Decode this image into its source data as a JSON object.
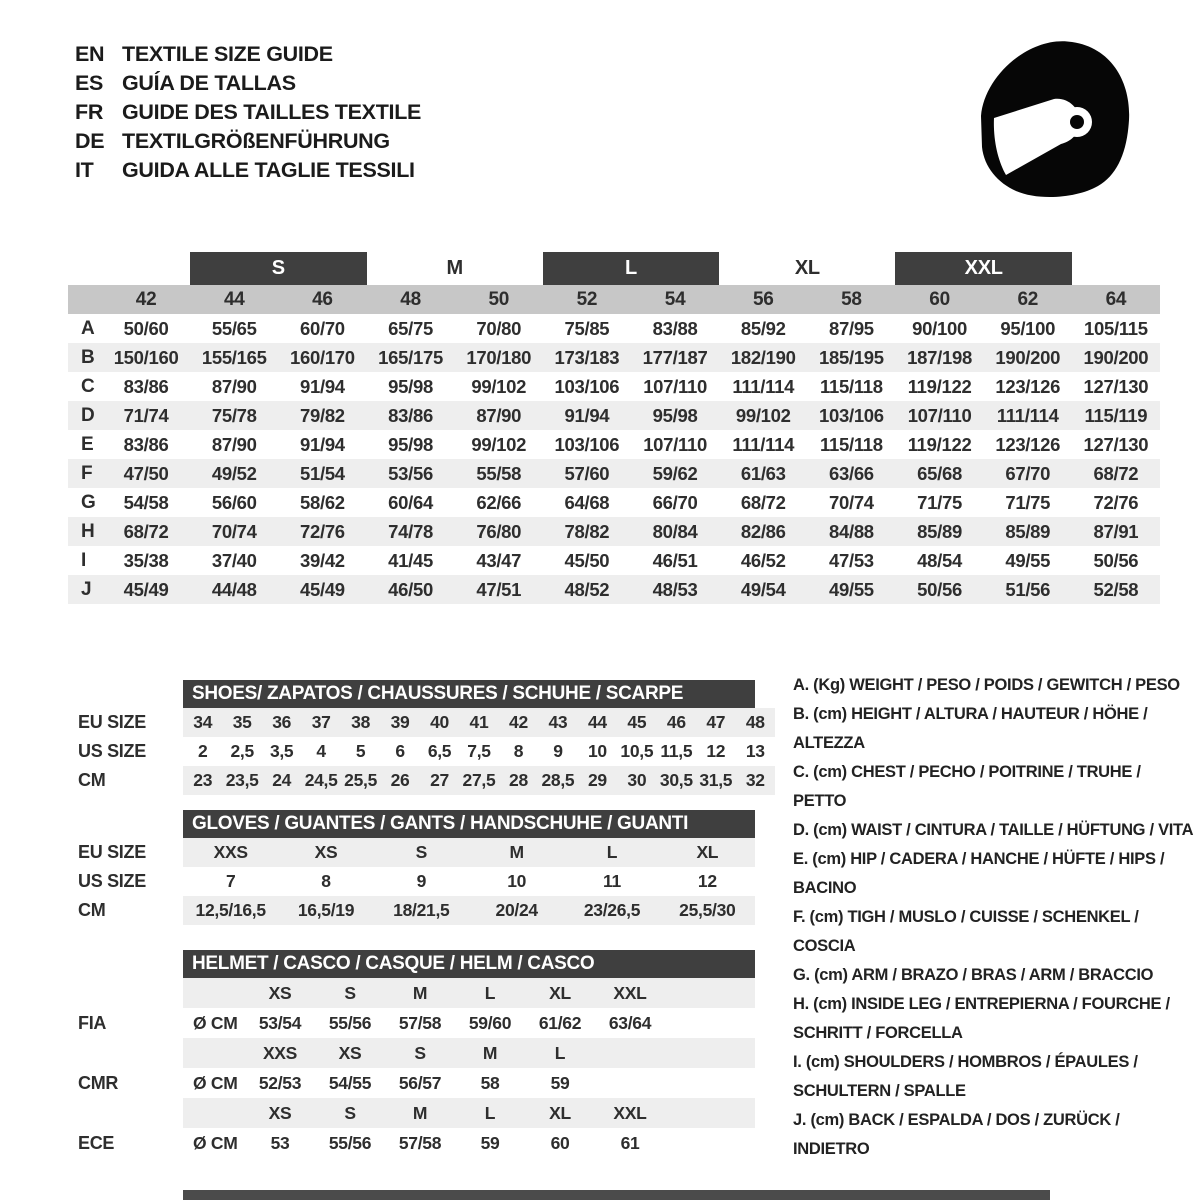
{
  "languages": [
    {
      "code": "EN",
      "label": "TEXTILE SIZE GUIDE"
    },
    {
      "code": "ES",
      "label": "GUÍA DE TALLAS"
    },
    {
      "code": "FR",
      "label": "GUIDE DES TAILLES TEXTILE"
    },
    {
      "code": "DE",
      "label": "TEXTILGRÖßENFÜHRUNG"
    },
    {
      "code": "IT",
      "label": "GUIDA ALLE TAGLIE TESSILI"
    }
  ],
  "icons": {
    "helmet": "racing-helmet-icon"
  },
  "colors": {
    "bar_dark": "#3f3f3f",
    "band_gray": "#c7c7c7",
    "row_alt": "#eeeeee",
    "text": "#2e2e2e"
  },
  "textile_table": {
    "size_bands": [
      {
        "label": "S"
      },
      {
        "label": "M"
      },
      {
        "label": "L"
      },
      {
        "label": "XL"
      },
      {
        "label": "XXL"
      }
    ],
    "numeric_sizes": [
      "42",
      "44",
      "46",
      "48",
      "50",
      "52",
      "54",
      "56",
      "58",
      "60",
      "62",
      "64"
    ],
    "rows": [
      {
        "key": "A",
        "values": [
          "50/60",
          "55/65",
          "60/70",
          "65/75",
          "70/80",
          "75/85",
          "83/88",
          "85/92",
          "87/95",
          "90/100",
          "95/100",
          "105/115"
        ]
      },
      {
        "key": "B",
        "values": [
          "150/160",
          "155/165",
          "160/170",
          "165/175",
          "170/180",
          "173/183",
          "177/187",
          "182/190",
          "185/195",
          "187/198",
          "190/200",
          "190/200"
        ]
      },
      {
        "key": "C",
        "values": [
          "83/86",
          "87/90",
          "91/94",
          "95/98",
          "99/102",
          "103/106",
          "107/110",
          "111/114",
          "115/118",
          "119/122",
          "123/126",
          "127/130"
        ]
      },
      {
        "key": "D",
        "values": [
          "71/74",
          "75/78",
          "79/82",
          "83/86",
          "87/90",
          "91/94",
          "95/98",
          "99/102",
          "103/106",
          "107/110",
          "111/114",
          "115/119"
        ]
      },
      {
        "key": "E",
        "values": [
          "83/86",
          "87/90",
          "91/94",
          "95/98",
          "99/102",
          "103/106",
          "107/110",
          "111/114",
          "115/118",
          "119/122",
          "123/126",
          "127/130"
        ]
      },
      {
        "key": "F",
        "values": [
          "47/50",
          "49/52",
          "51/54",
          "53/56",
          "55/58",
          "57/60",
          "59/62",
          "61/63",
          "63/66",
          "65/68",
          "67/70",
          "68/72"
        ]
      },
      {
        "key": "G",
        "values": [
          "54/58",
          "56/60",
          "58/62",
          "60/64",
          "62/66",
          "64/68",
          "66/70",
          "68/72",
          "70/74",
          "71/75",
          "71/75",
          "72/76"
        ]
      },
      {
        "key": "H",
        "values": [
          "68/72",
          "70/74",
          "72/76",
          "74/78",
          "76/80",
          "78/82",
          "80/84",
          "82/86",
          "84/88",
          "85/89",
          "85/89",
          "87/91"
        ]
      },
      {
        "key": "I",
        "values": [
          "35/38",
          "37/40",
          "39/42",
          "41/45",
          "43/47",
          "45/50",
          "46/51",
          "46/52",
          "47/53",
          "48/54",
          "49/55",
          "50/56"
        ]
      },
      {
        "key": "J",
        "values": [
          "45/49",
          "44/48",
          "45/49",
          "46/50",
          "47/51",
          "48/52",
          "48/53",
          "49/54",
          "49/55",
          "50/56",
          "51/56",
          "52/58"
        ]
      }
    ]
  },
  "shoes": {
    "title": "SHOES/ ZAPATOS / CHAUSSURES / SCHUHE / SCARPE",
    "rows": [
      {
        "label": "EU SIZE",
        "values": [
          "34",
          "35",
          "36",
          "37",
          "38",
          "39",
          "40",
          "41",
          "42",
          "43",
          "44",
          "45",
          "46",
          "47",
          "48"
        ]
      },
      {
        "label": "US SIZE",
        "values": [
          "2",
          "2,5",
          "3,5",
          "4",
          "5",
          "6",
          "6,5",
          "7,5",
          "8",
          "9",
          "10",
          "10,5",
          "11,5",
          "12",
          "13"
        ]
      },
      {
        "label": "CM",
        "values": [
          "23",
          "23,5",
          "24",
          "24,5",
          "25,5",
          "26",
          "27",
          "27,5",
          "28",
          "28,5",
          "29",
          "30",
          "30,5",
          "31,5",
          "32"
        ]
      }
    ]
  },
  "gloves": {
    "title": "GLOVES / GUANTES / GANTS / HANDSCHUHE / GUANTI",
    "rows": [
      {
        "label": "EU SIZE",
        "values": [
          "XXS",
          "XS",
          "S",
          "M",
          "L",
          "XL"
        ]
      },
      {
        "label": "US SIZE",
        "values": [
          "7",
          "8",
          "9",
          "10",
          "11",
          "12"
        ]
      },
      {
        "label": "CM",
        "values": [
          "12,5/16,5",
          "16,5/19",
          "18/21,5",
          "20/24",
          "23/26,5",
          "25,5/30"
        ]
      }
    ]
  },
  "helmet": {
    "title": "HELMET / CASCO / CASQUE / HELM / CASCO",
    "standards": [
      {
        "label": "FIA",
        "unit": "Ø CM",
        "sizes": [
          "XS",
          "S",
          "M",
          "L",
          "XL",
          "XXL"
        ],
        "values": [
          "53/54",
          "55/56",
          "57/58",
          "59/60",
          "61/62",
          "63/64"
        ]
      },
      {
        "label": "CMR",
        "unit": "Ø CM",
        "sizes": [
          "XXS",
          "XS",
          "S",
          "M",
          "L"
        ],
        "values": [
          "52/53",
          "54/55",
          "56/57",
          "58",
          "59"
        ]
      },
      {
        "label": "ECE",
        "unit": "Ø CM",
        "sizes": [
          "XS",
          "S",
          "M",
          "L",
          "XL",
          "XXL"
        ],
        "values": [
          "53",
          "55/56",
          "57/58",
          "59",
          "60",
          "61"
        ]
      }
    ]
  },
  "legend": {
    "items": [
      "A. (Kg) WEIGHT / PESO / POIDS / GEWITCH / PESO",
      "B. (cm) HEIGHT / ALTURA / HAUTEUR / HÖHE / ALTEZZA",
      "C. (cm) CHEST / PECHO / POITRINE / TRUHE / PETTO",
      "D. (cm) WAIST / CINTURA / TAILLE / HÜFTUNG / VITA",
      "E. (cm) HIP / CADERA / HANCHE / HÜFTE / HIPS / BACINO",
      "F. (cm) TIGH / MUSLO / CUISSE / SCHENKEL / COSCIA",
      "G. (cm) ARM / BRAZO / BRAS / ARM / BRACCIO",
      "H. (cm) INSIDE LEG / ENTREPIERNA / FOURCHE / SCHRITT / FORCELLA",
      "I. (cm) SHOULDERS / HOMBROS / ÉPAULES / SCHULTERN / SPALLE",
      "J. (cm) BACK / ESPALDA / DOS / ZURÜCK / INDIETRO"
    ]
  }
}
